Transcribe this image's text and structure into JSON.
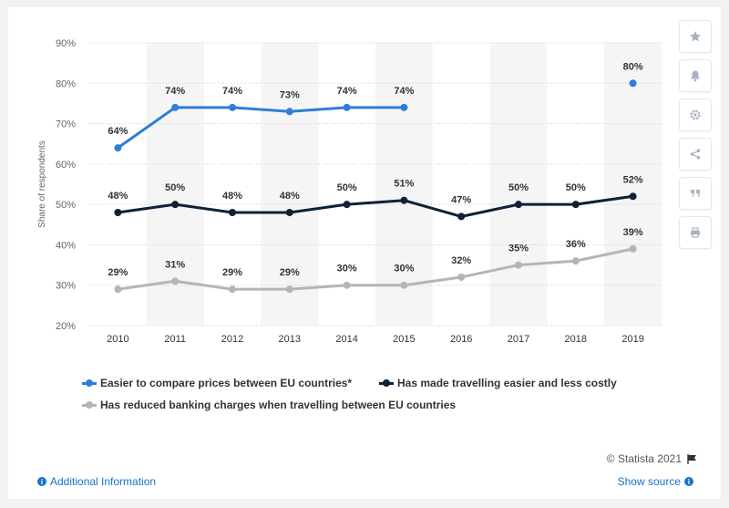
{
  "chart_data": {
    "type": "line",
    "categories": [
      "2010",
      "2011",
      "2012",
      "2013",
      "2014",
      "2015",
      "2016",
      "2017",
      "2018",
      "2019"
    ],
    "series": [
      {
        "name": "Easier to compare prices between EU countries*",
        "color": "#2f7ed8",
        "values": [
          64,
          74,
          74,
          73,
          74,
          74,
          null,
          null,
          null,
          80
        ],
        "labels": [
          "64%",
          "74%",
          "74%",
          "73%",
          "74%",
          "74%",
          "",
          "",
          "",
          "80%"
        ]
      },
      {
        "name": "Has made travelling easier and less costly",
        "color": "#0d2137",
        "values": [
          48,
          50,
          48,
          48,
          50,
          51,
          47,
          50,
          50,
          52
        ],
        "labels": [
          "48%",
          "50%",
          "48%",
          "48%",
          "50%",
          "51%",
          "47%",
          "50%",
          "50%",
          "52%"
        ]
      },
      {
        "name": "Has reduced banking charges when travelling between EU countries",
        "color": "#b5b5b5",
        "values": [
          29,
          31,
          29,
          29,
          30,
          30,
          32,
          35,
          36,
          39
        ],
        "labels": [
          "29%",
          "31%",
          "29%",
          "29%",
          "30%",
          "30%",
          "32%",
          "35%",
          "36%",
          "39%"
        ]
      }
    ],
    "ylabel": "Share of respondents",
    "ylim": [
      20,
      90
    ],
    "yticks": [
      "20%",
      "30%",
      "40%",
      "50%",
      "60%",
      "70%",
      "80%",
      "90%"
    ],
    "ytick_values": [
      20,
      30,
      40,
      50,
      60,
      70,
      80,
      90
    ],
    "grid": true,
    "legend_position": "bottom"
  },
  "toolbar": {
    "icons": [
      "star-icon",
      "bell-icon",
      "gear-icon",
      "share-icon",
      "quote-icon",
      "print-icon"
    ]
  },
  "footer": {
    "copyright": "© Statista 2021",
    "additional_info": "Additional Information",
    "show_source": "Show source"
  }
}
